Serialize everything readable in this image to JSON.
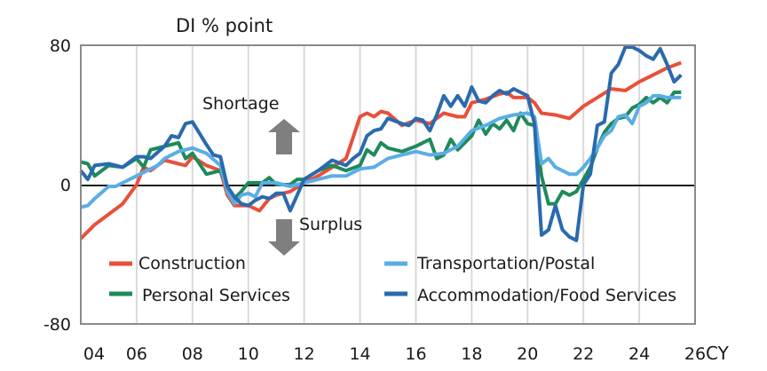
{
  "chart_data": {
    "type": "line",
    "ylabel": "DI % point",
    "xlabel": "CY",
    "xlim": [
      2004,
      2026
    ],
    "ylim": [
      -80,
      80
    ],
    "x_ticks": [
      2004,
      2006,
      2008,
      2010,
      2012,
      2014,
      2016,
      2018,
      2020,
      2022,
      2024,
      2026
    ],
    "x_tick_labels": [
      "04",
      "06",
      "08",
      "10",
      "12",
      "14",
      "16",
      "18",
      "20",
      "22",
      "24",
      "26"
    ],
    "y_ticks": [
      80,
      0,
      -80
    ],
    "y_tick_labels": [
      "80",
      "0",
      "-80"
    ],
    "grid": "vertical",
    "legend": "bottom",
    "annotations": {
      "up": "Shortage",
      "down": "Surplus"
    },
    "arrow_color": "#7f7f7f",
    "series": [
      {
        "name": "Construction",
        "color": "#e8503a",
        "points": [
          [
            2004,
            -31
          ],
          [
            2004.5,
            -23
          ],
          [
            2005,
            -17
          ],
          [
            2005.5,
            -11
          ],
          [
            2006,
            0
          ],
          [
            2006.25,
            10
          ],
          [
            2006.5,
            8
          ],
          [
            2007,
            14
          ],
          [
            2007.5,
            12
          ],
          [
            2007.75,
            11
          ],
          [
            2008,
            16
          ],
          [
            2008.5,
            11
          ],
          [
            2009,
            8
          ],
          [
            2009.25,
            -6
          ],
          [
            2009.5,
            -12
          ],
          [
            2010,
            -12
          ],
          [
            2010.4,
            -15
          ],
          [
            2010.75,
            -8
          ],
          [
            2011,
            -6
          ],
          [
            2011.5,
            -4
          ],
          [
            2012,
            1
          ],
          [
            2012.5,
            5
          ],
          [
            2013,
            10
          ],
          [
            2013.5,
            15
          ],
          [
            2013.75,
            27
          ],
          [
            2014,
            39
          ],
          [
            2014.25,
            41
          ],
          [
            2014.5,
            39
          ],
          [
            2014.75,
            42
          ],
          [
            2015,
            41
          ],
          [
            2015.5,
            34
          ],
          [
            2016,
            37
          ],
          [
            2016.5,
            35
          ],
          [
            2017,
            41
          ],
          [
            2017.5,
            39
          ],
          [
            2017.75,
            39
          ],
          [
            2018,
            47
          ],
          [
            2018.5,
            49
          ],
          [
            2019,
            52
          ],
          [
            2019.25,
            53
          ],
          [
            2019.5,
            50
          ],
          [
            2020,
            50
          ],
          [
            2020.25,
            47
          ],
          [
            2020.5,
            41
          ],
          [
            2021,
            40
          ],
          [
            2021.5,
            38
          ],
          [
            2022,
            45
          ],
          [
            2022.5,
            50
          ],
          [
            2023,
            55
          ],
          [
            2023.5,
            54
          ],
          [
            2024,
            59
          ],
          [
            2024.5,
            63
          ],
          [
            2025,
            67
          ],
          [
            2025.5,
            70
          ]
        ]
      },
      {
        "name": "Personal Services",
        "color": "#1e8a5a",
        "points": [
          [
            2004,
            13
          ],
          [
            2004.25,
            12
          ],
          [
            2004.5,
            5
          ],
          [
            2005,
            11
          ],
          [
            2005.5,
            10
          ],
          [
            2006,
            15
          ],
          [
            2006.25,
            10
          ],
          [
            2006.5,
            20
          ],
          [
            2007,
            22
          ],
          [
            2007.5,
            24
          ],
          [
            2007.75,
            15
          ],
          [
            2008,
            18
          ],
          [
            2008.5,
            6
          ],
          [
            2009,
            8
          ],
          [
            2009.25,
            -1
          ],
          [
            2009.5,
            -8
          ],
          [
            2009.75,
            -4
          ],
          [
            2010,
            1
          ],
          [
            2010.5,
            1
          ],
          [
            2010.75,
            4
          ],
          [
            2011,
            0
          ],
          [
            2011.5,
            0
          ],
          [
            2011.75,
            3
          ],
          [
            2012,
            3
          ],
          [
            2012.5,
            8
          ],
          [
            2013,
            11
          ],
          [
            2013.5,
            8
          ],
          [
            2014,
            11
          ],
          [
            2014.25,
            20
          ],
          [
            2014.5,
            17
          ],
          [
            2014.75,
            24
          ],
          [
            2015,
            21
          ],
          [
            2015.5,
            19
          ],
          [
            2016,
            22
          ],
          [
            2016.5,
            26
          ],
          [
            2016.75,
            15
          ],
          [
            2017,
            17
          ],
          [
            2017.25,
            26
          ],
          [
            2017.5,
            20
          ],
          [
            2018,
            28
          ],
          [
            2018.25,
            37
          ],
          [
            2018.5,
            29
          ],
          [
            2018.75,
            35
          ],
          [
            2019,
            32
          ],
          [
            2019.25,
            37
          ],
          [
            2019.5,
            31
          ],
          [
            2019.75,
            41
          ],
          [
            2020,
            35
          ],
          [
            2020.25,
            34
          ],
          [
            2020.5,
            5
          ],
          [
            2020.75,
            -11
          ],
          [
            2021,
            -11
          ],
          [
            2021.25,
            -4
          ],
          [
            2021.5,
            -6
          ],
          [
            2021.75,
            -4
          ],
          [
            2022,
            3
          ],
          [
            2022.25,
            10
          ],
          [
            2022.5,
            21
          ],
          [
            2022.75,
            30
          ],
          [
            2023,
            35
          ],
          [
            2023.25,
            38
          ],
          [
            2023.5,
            39
          ],
          [
            2023.75,
            44
          ],
          [
            2024,
            46
          ],
          [
            2024.25,
            50
          ],
          [
            2024.5,
            47
          ],
          [
            2024.75,
            50
          ],
          [
            2025,
            47
          ],
          [
            2025.25,
            53
          ],
          [
            2025.5,
            53
          ]
        ]
      },
      {
        "name": "Transportation/Postal",
        "color": "#5aaee6",
        "points": [
          [
            2004,
            -13
          ],
          [
            2004.25,
            -12
          ],
          [
            2004.5,
            -8
          ],
          [
            2005,
            -1
          ],
          [
            2005.25,
            -1
          ],
          [
            2005.5,
            1
          ],
          [
            2006,
            5
          ],
          [
            2006.5,
            9
          ],
          [
            2006.75,
            11
          ],
          [
            2007,
            15
          ],
          [
            2007.5,
            19
          ],
          [
            2008,
            21
          ],
          [
            2008.5,
            18
          ],
          [
            2009,
            11
          ],
          [
            2009.25,
            -4
          ],
          [
            2009.5,
            -11
          ],
          [
            2009.75,
            -6
          ],
          [
            2010,
            -5
          ],
          [
            2010.25,
            -7
          ],
          [
            2010.5,
            1
          ],
          [
            2011,
            1
          ],
          [
            2011.5,
            -1
          ],
          [
            2012,
            1
          ],
          [
            2012.5,
            3
          ],
          [
            2013,
            5
          ],
          [
            2013.5,
            5
          ],
          [
            2014,
            9
          ],
          [
            2014.5,
            10
          ],
          [
            2015,
            15
          ],
          [
            2015.5,
            17
          ],
          [
            2016,
            19
          ],
          [
            2016.5,
            17
          ],
          [
            2017,
            18
          ],
          [
            2017.5,
            22
          ],
          [
            2018,
            31
          ],
          [
            2018.5,
            34
          ],
          [
            2019,
            38
          ],
          [
            2019.5,
            40
          ],
          [
            2020,
            41
          ],
          [
            2020.25,
            39
          ],
          [
            2020.5,
            12
          ],
          [
            2020.75,
            15
          ],
          [
            2021,
            10
          ],
          [
            2021.5,
            6
          ],
          [
            2021.75,
            6
          ],
          [
            2022,
            10
          ],
          [
            2022.25,
            15
          ],
          [
            2022.5,
            21
          ],
          [
            2022.75,
            28
          ],
          [
            2023,
            31
          ],
          [
            2023.25,
            39
          ],
          [
            2023.5,
            40
          ],
          [
            2023.75,
            35
          ],
          [
            2024,
            45
          ],
          [
            2024.25,
            47
          ],
          [
            2024.5,
            51
          ],
          [
            2024.75,
            51
          ],
          [
            2025,
            50
          ],
          [
            2025.5,
            50
          ]
        ]
      },
      {
        "name": "Accommodation/Food Services",
        "color": "#2a6aae",
        "points": [
          [
            2004,
            8
          ],
          [
            2004.25,
            3
          ],
          [
            2004.5,
            11
          ],
          [
            2005,
            12
          ],
          [
            2005.5,
            10
          ],
          [
            2006,
            16
          ],
          [
            2006.25,
            16
          ],
          [
            2006.5,
            15
          ],
          [
            2007,
            22
          ],
          [
            2007.25,
            28
          ],
          [
            2007.5,
            27
          ],
          [
            2007.75,
            35
          ],
          [
            2008,
            36
          ],
          [
            2008.5,
            23
          ],
          [
            2008.75,
            17
          ],
          [
            2009,
            16
          ],
          [
            2009.25,
            -1
          ],
          [
            2009.5,
            -7
          ],
          [
            2009.75,
            -11
          ],
          [
            2010,
            -12
          ],
          [
            2010.25,
            -9
          ],
          [
            2010.5,
            -7
          ],
          [
            2010.75,
            -8
          ],
          [
            2011,
            -5
          ],
          [
            2011.25,
            -5
          ],
          [
            2011.5,
            -15
          ],
          [
            2011.75,
            -6
          ],
          [
            2012,
            3
          ],
          [
            2012.5,
            8
          ],
          [
            2013,
            14
          ],
          [
            2013.5,
            11
          ],
          [
            2013.75,
            15
          ],
          [
            2014,
            18
          ],
          [
            2014.25,
            28
          ],
          [
            2014.5,
            31
          ],
          [
            2014.75,
            32
          ],
          [
            2015,
            38
          ],
          [
            2015.5,
            35
          ],
          [
            2015.75,
            34
          ],
          [
            2016,
            38
          ],
          [
            2016.25,
            37
          ],
          [
            2016.5,
            31
          ],
          [
            2016.75,
            40
          ],
          [
            2017,
            51
          ],
          [
            2017.25,
            45
          ],
          [
            2017.5,
            51
          ],
          [
            2017.75,
            45
          ],
          [
            2018,
            56
          ],
          [
            2018.25,
            48
          ],
          [
            2018.5,
            47
          ],
          [
            2018.75,
            51
          ],
          [
            2019,
            54
          ],
          [
            2019.25,
            52
          ],
          [
            2019.5,
            55
          ],
          [
            2019.75,
            53
          ],
          [
            2020,
            51
          ],
          [
            2020.25,
            35
          ],
          [
            2020.5,
            -29
          ],
          [
            2020.75,
            -26
          ],
          [
            2021,
            -12
          ],
          [
            2021.25,
            -26
          ],
          [
            2021.5,
            -30
          ],
          [
            2021.75,
            -32
          ],
          [
            2022,
            0
          ],
          [
            2022.25,
            6
          ],
          [
            2022.5,
            34
          ],
          [
            2022.75,
            36
          ],
          [
            2023,
            64
          ],
          [
            2023.25,
            69
          ],
          [
            2023.5,
            79
          ],
          [
            2023.75,
            79
          ],
          [
            2024,
            77
          ],
          [
            2024.25,
            74
          ],
          [
            2024.5,
            72
          ],
          [
            2024.75,
            78
          ],
          [
            2025,
            69
          ],
          [
            2025.25,
            59
          ],
          [
            2025.5,
            63
          ]
        ]
      }
    ]
  }
}
